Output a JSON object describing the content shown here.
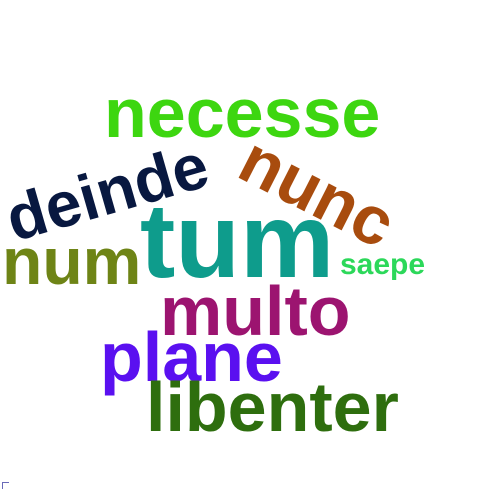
{
  "words": {
    "necesse": {
      "text": "necesse",
      "color": "#3dd610"
    },
    "nunc": {
      "text": "nunc",
      "color": "#a84c0e"
    },
    "deinde": {
      "text": "deinde",
      "color": "#081840"
    },
    "tum": {
      "text": "tum",
      "color": "#0e9c8c"
    },
    "num": {
      "text": "num",
      "color": "#6e8416"
    },
    "saepe": {
      "text": "saepe",
      "color": "#2cd85a"
    },
    "multo": {
      "text": "multo",
      "color": "#9c1470"
    },
    "plane": {
      "text": "plane",
      "color": "#5a10f0"
    },
    "libenter": {
      "text": "libenter",
      "color": "#2e6e0e"
    }
  }
}
